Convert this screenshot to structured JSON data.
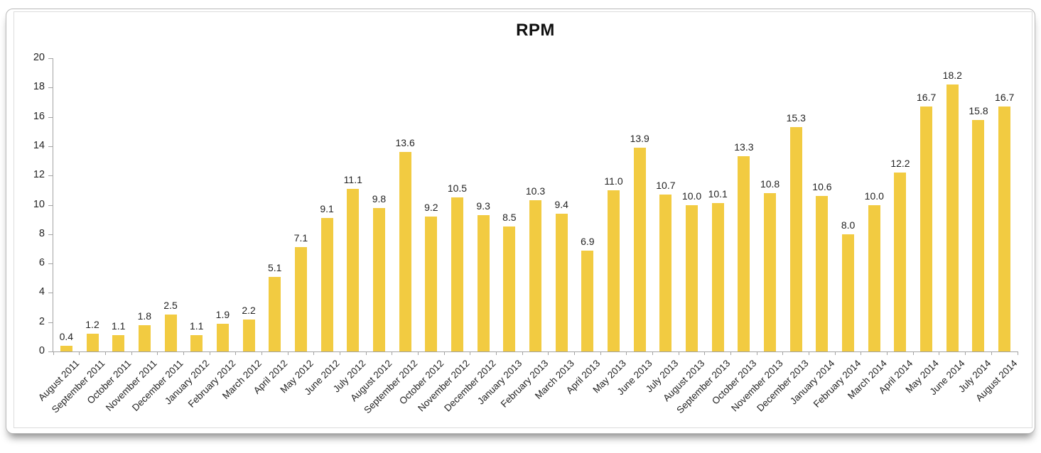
{
  "title": "RPM",
  "chart_data": {
    "type": "bar",
    "title": "RPM",
    "categories": [
      "August 2011",
      "September 2011",
      "October 2011",
      "November 2011",
      "December 2011",
      "January 2012",
      "February 2012",
      "March 2012",
      "April 2012",
      "May 2012",
      "June 2012",
      "July 2012",
      "August 2012",
      "September 2012",
      "October 2012",
      "November 2012",
      "December 2012",
      "January 2013",
      "February 2013",
      "March 2013",
      "April 2013",
      "May 2013",
      "June 2013",
      "July 2013",
      "August 2013",
      "September 2013",
      "October 2013",
      "November 2013",
      "December 2013",
      "January 2014",
      "February 2014",
      "March 2014",
      "April 2014",
      "May 2014",
      "June 2014",
      "July 2014",
      "August 2014"
    ],
    "values": [
      0.4,
      1.2,
      1.1,
      1.8,
      2.5,
      1.1,
      1.9,
      2.2,
      5.1,
      7.1,
      9.1,
      11.1,
      9.8,
      13.6,
      9.2,
      10.5,
      9.3,
      8.5,
      10.3,
      9.4,
      6.9,
      11.0,
      13.9,
      10.7,
      10.0,
      10.1,
      13.3,
      10.8,
      15.3,
      10.6,
      8.0,
      10.0,
      12.2,
      16.7,
      18.2,
      15.8,
      16.7
    ],
    "xlabel": "",
    "ylabel": "",
    "ylim": [
      0,
      20
    ],
    "yticks": [
      0,
      2,
      4,
      6,
      8,
      10,
      12,
      14,
      16,
      18,
      20
    ],
    "grid": false,
    "legend": false,
    "value_labels": true,
    "bar_color": "#F2CB41",
    "axis_color": "#A3A3A3",
    "text_color": "#232323",
    "title_color": "#111111"
  }
}
